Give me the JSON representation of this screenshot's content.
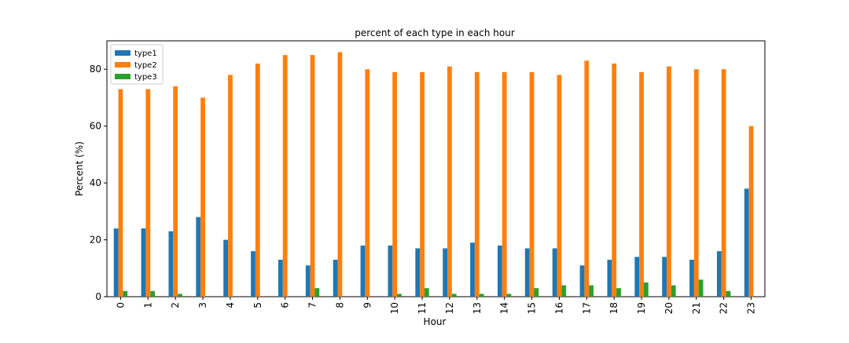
{
  "chart_data": {
    "type": "bar",
    "title": "percent of each type in each hour",
    "xlabel": "Hour",
    "ylabel": "Percent (%)",
    "ylim": [
      0,
      90
    ],
    "yticks": [
      0,
      20,
      40,
      60,
      80
    ],
    "grid": false,
    "legend_position": "top-left",
    "categories": [
      "0",
      "1",
      "2",
      "3",
      "4",
      "5",
      "6",
      "7",
      "8",
      "9",
      "10",
      "11",
      "12",
      "13",
      "14",
      "15",
      "16",
      "17",
      "18",
      "19",
      "20",
      "21",
      "22",
      "23"
    ],
    "series": [
      {
        "name": "type1",
        "color": "#1f77b4",
        "values": [
          24,
          24,
          23,
          28,
          20,
          16,
          13,
          11,
          13,
          18,
          18,
          17,
          17,
          19,
          18,
          17,
          17,
          11,
          13,
          14,
          14,
          13,
          16,
          38
        ]
      },
      {
        "name": "type2",
        "color": "#ff7f0e",
        "values": [
          73,
          73,
          74,
          70,
          78,
          82,
          85,
          85,
          86,
          80,
          79,
          79,
          81,
          79,
          79,
          79,
          78,
          83,
          82,
          79,
          81,
          80,
          80,
          60
        ]
      },
      {
        "name": "type3",
        "color": "#2ca02c",
        "values": [
          2,
          2,
          1,
          0,
          0,
          0,
          0,
          3,
          0,
          0,
          1,
          3,
          1,
          1,
          1,
          3,
          4,
          4,
          3,
          5,
          4,
          6,
          2,
          0
        ]
      }
    ]
  }
}
